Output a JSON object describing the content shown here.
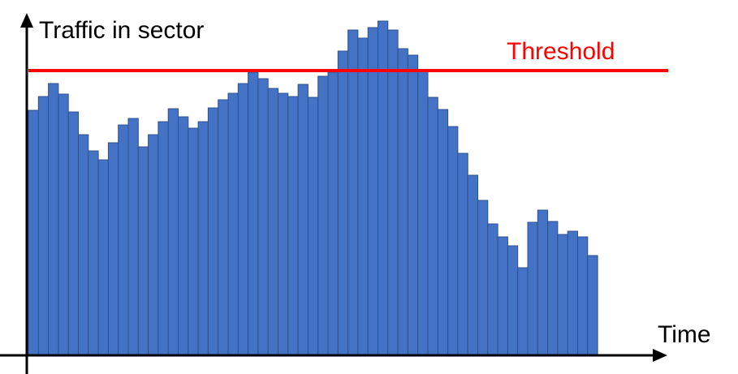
{
  "chart_data": {
    "type": "bar",
    "title": "",
    "xlabel": "Time",
    "ylabel": "Traffic in sector",
    "bar_color": "#4472C4",
    "bar_edge_color": "#2F528F",
    "threshold": {
      "label": "Threshold",
      "value": 350,
      "color": "#FF0000"
    },
    "ylim": [
      0,
      420
    ],
    "values": [
      301,
      318,
      334,
      321,
      299,
      271,
      251,
      240,
      261,
      283,
      291,
      256,
      271,
      287,
      303,
      293,
      279,
      287,
      304,
      314,
      322,
      334,
      348,
      340,
      328,
      322,
      318,
      333,
      317,
      343,
      348,
      374,
      400,
      390,
      403,
      411,
      400,
      377,
      369,
      349,
      317,
      302,
      281,
      248,
      221,
      190,
      161,
      145,
      134,
      107,
      163,
      178,
      164,
      148,
      152,
      145,
      122
    ]
  }
}
